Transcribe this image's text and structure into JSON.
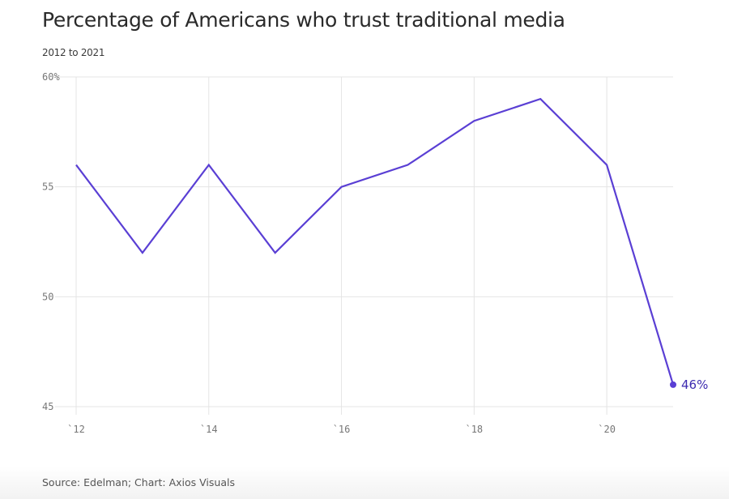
{
  "chart_data": {
    "type": "line",
    "title": "Percentage of Americans who trust traditional media",
    "subtitle": "2012 to 2021",
    "xlabel": "",
    "ylabel": "",
    "x": [
      2012,
      2013,
      2014,
      2015,
      2016,
      2017,
      2018,
      2019,
      2020,
      2021
    ],
    "series": [
      {
        "name": "Trust in traditional media",
        "values": [
          56,
          52,
          56,
          52,
          55,
          56,
          58,
          59,
          56,
          46
        ],
        "color": "#5a3fd4"
      }
    ],
    "ylim": [
      45,
      60
    ],
    "xlim": [
      2012,
      2021
    ],
    "y_ticks": [
      {
        "value": 60,
        "label": "60%"
      },
      {
        "value": 55,
        "label": "55"
      },
      {
        "value": 50,
        "label": "50"
      },
      {
        "value": 45,
        "label": "45"
      }
    ],
    "x_ticks": [
      {
        "value": 2012,
        "label": "`12"
      },
      {
        "value": 2014,
        "label": "`14"
      },
      {
        "value": 2016,
        "label": "`16"
      },
      {
        "value": 2018,
        "label": "`18"
      },
      {
        "value": 2020,
        "label": "`20"
      }
    ],
    "end_label": {
      "x": 2021,
      "value": 46,
      "label": "46%"
    },
    "grid": true,
    "legend": "none",
    "source": "Source: Edelman; Chart: Axios Visuals"
  },
  "colors": {
    "line": "#5a3fd4",
    "end_label": "#3d2bb0",
    "grid": "#e4e4e4",
    "title": "#2a2a2a"
  }
}
